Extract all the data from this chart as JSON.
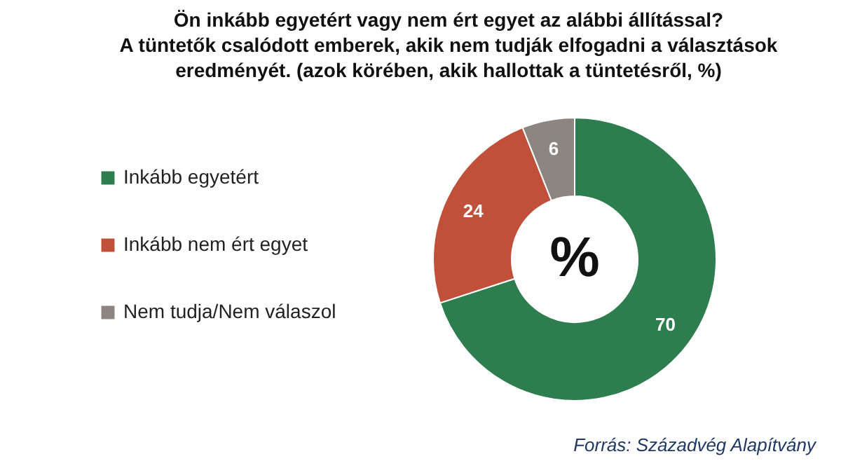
{
  "chart_data": {
    "type": "donut",
    "title": "Ön inkább egyetért vagy nem ért egyet az alábbi állítással?\nA tüntetők csalódott emberek, akik nem tudják elfogadni a választások\neredményét. (azok körében, akik hallottak a tüntetésről, %)",
    "categories": [
      "Inkább egyetért",
      "Inkább nem ért egyet",
      "Nem tudja/Nem válaszol"
    ],
    "values": [
      70,
      24,
      6
    ],
    "colors": [
      "#2e7d4f",
      "#c0503a",
      "#8c8580"
    ],
    "data_labels": true,
    "legend": "left",
    "annotations": [
      "%",
      "Forrás: Századvég Alapítvány"
    ]
  }
}
